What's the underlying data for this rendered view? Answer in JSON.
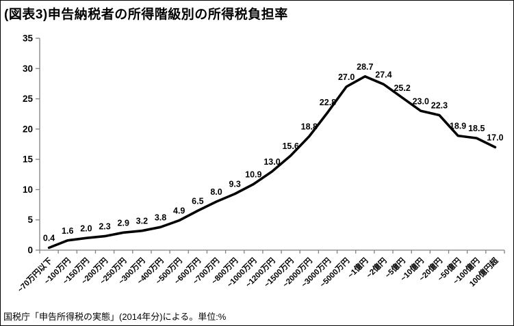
{
  "header": {
    "title": "(図表3)申告納税者の所得階級別の所得税負担率"
  },
  "footer": {
    "source": "国税庁「申告所得税の実態」(2014年分)による。単位:%"
  },
  "chart_data": {
    "type": "line",
    "title": "(図表3)申告納税者の所得階級別の所得税負担率",
    "categories": [
      "~70万円以下",
      "~100万円",
      "~150万円",
      "~200万円",
      "~250万円",
      "~300万円",
      "~400万円",
      "~500万円",
      "~600万円",
      "~700万円",
      "~800万円",
      "~1000万円",
      "~1200万円",
      "~1500万円",
      "~2000万円",
      "~3000万円",
      "~5000万円",
      "~1億円",
      "~2億円",
      "~5億円",
      "~10億円",
      "~20億円",
      "~50億円",
      "~100億円",
      "100億円超"
    ],
    "values": [
      0.4,
      1.6,
      2.0,
      2.3,
      2.9,
      3.2,
      3.8,
      4.9,
      6.5,
      8.0,
      9.3,
      10.9,
      13.0,
      15.6,
      18.8,
      22.8,
      27.0,
      28.7,
      27.4,
      25.2,
      23.0,
      22.3,
      18.9,
      18.5,
      17.0
    ],
    "data_labels": [
      "0.4",
      "1.6",
      "2.0",
      "2.3",
      "2.9",
      "3.2",
      "3.8",
      "4.9",
      "6.5",
      "8.0",
      "9.3",
      "10.9",
      "13.0",
      "15.6",
      "18.8",
      "22.8",
      "27.0",
      "28.7",
      "27.4",
      "25.2",
      "23.0",
      "22.3",
      "18.9",
      "18.5",
      "17.0"
    ],
    "xlabel": "",
    "ylabel": "",
    "ylim": [
      0,
      35
    ],
    "yticks": [
      0,
      5,
      10,
      15,
      20,
      25,
      30,
      35
    ],
    "grid": false,
    "legend": "none",
    "line_color": "#000000",
    "axis_color": "#808080",
    "text_color": "#000000"
  }
}
